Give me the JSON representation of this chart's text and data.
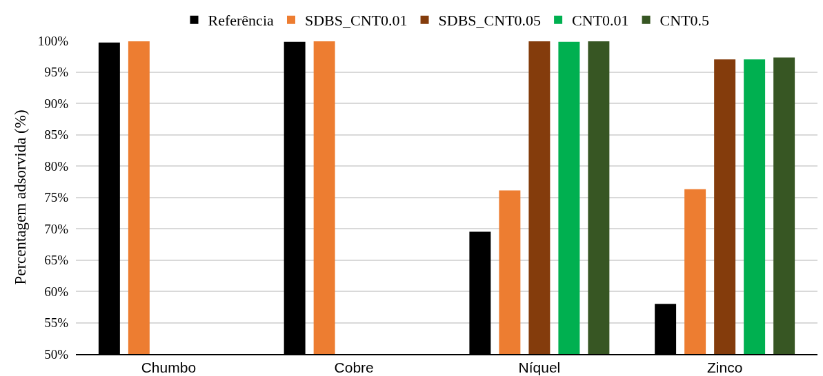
{
  "chart_data": {
    "type": "bar",
    "ylabel": "Percentagem adsorvida (%)",
    "categories": [
      "Chumbo",
      "Cobre",
      "Níquel",
      "Zinco"
    ],
    "series": [
      {
        "name": "Referência",
        "color": "#000000",
        "values": [
          99.7,
          99.8,
          69.5,
          58.0
        ]
      },
      {
        "name": "SDBS_CNT0.01",
        "color": "#ed7d31",
        "values": [
          99.9,
          99.9,
          76.1,
          76.3
        ]
      },
      {
        "name": "SDBS_CNT0.05",
        "color": "#843c0c",
        "values": [
          null,
          null,
          99.9,
          97.0
        ]
      },
      {
        "name": "CNT0.01",
        "color": "#00b050",
        "values": [
          null,
          null,
          99.8,
          97.0
        ]
      },
      {
        "name": "CNT0.5",
        "color": "#375623",
        "values": [
          null,
          null,
          99.9,
          97.3
        ]
      }
    ],
    "ylim": [
      50,
      100
    ],
    "yticks": [
      {
        "value": 50,
        "label": "50%"
      },
      {
        "value": 55,
        "label": "55%"
      },
      {
        "value": 60,
        "label": "60%"
      },
      {
        "value": 65,
        "label": "65%"
      },
      {
        "value": 70,
        "label": "70%"
      },
      {
        "value": 75,
        "label": "75%"
      },
      {
        "value": 80,
        "label": "80%"
      },
      {
        "value": 85,
        "label": "85%"
      },
      {
        "value": 90,
        "label": "90%"
      },
      {
        "value": 95,
        "label": "95%"
      },
      {
        "value": 100,
        "label": "100%"
      }
    ],
    "grid": "y",
    "legend": "top"
  }
}
